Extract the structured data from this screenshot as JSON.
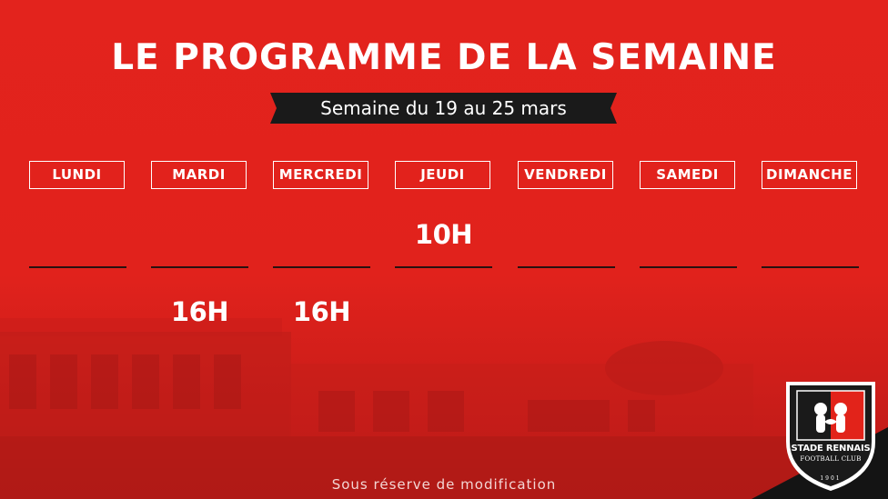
{
  "header": {
    "title": "LE PROGRAMME DE LA SEMAINE",
    "week": "Semaine du 19 au 25 mars"
  },
  "days": [
    {
      "label": "LUNDI",
      "morning": "",
      "afternoon": ""
    },
    {
      "label": "MARDI",
      "morning": "",
      "afternoon": "16H"
    },
    {
      "label": "MERCREDI",
      "morning": "",
      "afternoon": "16H"
    },
    {
      "label": "JEUDI",
      "morning": "10H",
      "afternoon": ""
    },
    {
      "label": "VENDREDI",
      "morning": "",
      "afternoon": ""
    },
    {
      "label": "SAMEDI",
      "morning": "",
      "afternoon": ""
    },
    {
      "label": "DIMANCHE",
      "morning": "",
      "afternoon": ""
    }
  ],
  "footer": {
    "note": "Sous réserve de modification"
  },
  "logo": {
    "name": "STADE RENNAIS",
    "subtitle": "FOOTBALL CLUB",
    "year": "1901"
  },
  "colors": {
    "background": "#e0221d",
    "ribbon": "#1a1a1a",
    "line": "#2a1110",
    "text": "#ffffff",
    "crest_red": "#e2231a",
    "crest_black": "#1a1a1a"
  }
}
